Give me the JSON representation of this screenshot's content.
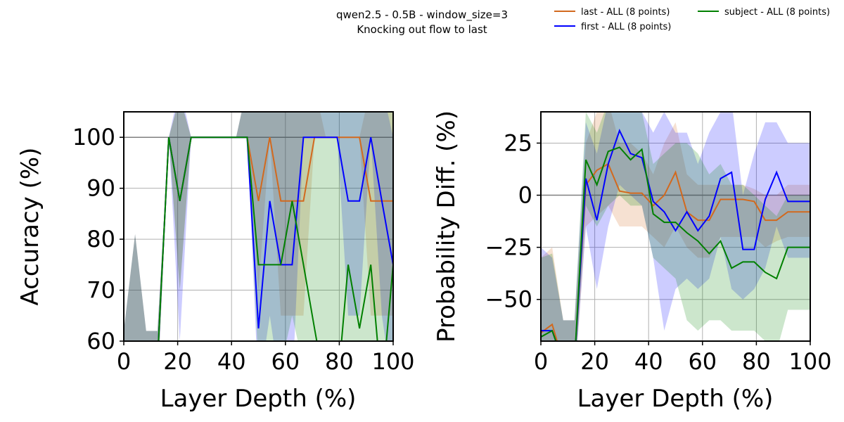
{
  "figure": {
    "title_line1": "qwen2.5 - 0.5B - window_size=3",
    "title_line2": "Knocking out flow to last"
  },
  "legend": [
    {
      "label": "last - ALL (8 points)",
      "color": "#d2691e"
    },
    {
      "label": "first - ALL (8 points)",
      "color": "#0000ff"
    },
    {
      "label": "subject - ALL (8 points)",
      "color": "#008000"
    }
  ],
  "chart_data": [
    {
      "type": "line",
      "xlabel": "Layer Depth (%)",
      "ylabel": "Accuracy (%)",
      "xlim": [
        0,
        100
      ],
      "ylim": [
        60,
        105
      ],
      "xticks": [
        0,
        20,
        40,
        60,
        80,
        100
      ],
      "yticks": [
        60,
        70,
        80,
        90,
        100
      ],
      "grid": true,
      "reference_line": 100,
      "x": [
        0,
        4.2,
        8.3,
        12.5,
        16.7,
        20.8,
        25,
        29.2,
        33.3,
        37.5,
        41.7,
        45.8,
        50,
        54.2,
        58.3,
        62.5,
        66.7,
        70.8,
        75,
        79.2,
        83.3,
        87.5,
        91.7,
        95.8,
        100
      ],
      "series": [
        {
          "name": "last - ALL (8 points)",
          "color": "#d2691e",
          "values": [
            56,
            56,
            56,
            56,
            100,
            87.5,
            100,
            100,
            100,
            100,
            100,
            100,
            87.5,
            100,
            87.5,
            87.5,
            87.5,
            100,
            100,
            100,
            100,
            100,
            87.5,
            87.5,
            87.5
          ],
          "lower": [
            50,
            50,
            50,
            50,
            100,
            70,
            100,
            100,
            100,
            100,
            100,
            100,
            70,
            100,
            65,
            65,
            65,
            100,
            100,
            100,
            100,
            100,
            65,
            65,
            65
          ],
          "upper": [
            62,
            81,
            62,
            62,
            100,
            108,
            100,
            100,
            100,
            100,
            100,
            110,
            108,
            110,
            110,
            110,
            110,
            110,
            100,
            100,
            100,
            100,
            110,
            110,
            110
          ]
        },
        {
          "name": "first - ALL (8 points)",
          "color": "#0000ff",
          "values": [
            56,
            56,
            56,
            56,
            100,
            87.5,
            100,
            100,
            100,
            100,
            100,
            100,
            62.5,
            87.5,
            75,
            75,
            100,
            100,
            100,
            100,
            87.5,
            87.5,
            100,
            87.5,
            75
          ],
          "lower": [
            50,
            50,
            50,
            50,
            100,
            60,
            100,
            100,
            100,
            100,
            100,
            100,
            50,
            65,
            50,
            50,
            100,
            100,
            100,
            100,
            65,
            65,
            100,
            65,
            50
          ],
          "upper": [
            62,
            81,
            62,
            62,
            100,
            110,
            100,
            100,
            100,
            100,
            100,
            110,
            108,
            110,
            110,
            110,
            110,
            110,
            110,
            110,
            110,
            110,
            110,
            110,
            100
          ]
        },
        {
          "name": "subject - ALL (8 points)",
          "color": "#008000",
          "values": [
            56,
            56,
            56,
            56,
            100,
            87.5,
            100,
            100,
            100,
            100,
            100,
            100,
            75,
            75,
            75,
            87.5,
            75,
            62.5,
            50,
            50,
            75,
            62.5,
            75,
            50,
            75
          ],
          "lower": [
            50,
            50,
            50,
            50,
            100,
            70,
            100,
            100,
            100,
            100,
            100,
            100,
            55,
            55,
            55,
            65,
            55,
            40,
            40,
            40,
            55,
            40,
            55,
            40,
            55
          ],
          "upper": [
            62,
            81,
            62,
            62,
            100,
            108,
            100,
            100,
            100,
            100,
            100,
            110,
            110,
            110,
            110,
            110,
            110,
            110,
            110,
            110,
            110,
            110,
            110,
            110,
            110
          ]
        }
      ]
    },
    {
      "type": "line",
      "xlabel": "Layer Depth (%)",
      "ylabel": "Probability Diff. (%)",
      "xlim": [
        0,
        100
      ],
      "ylim": [
        -70,
        40
      ],
      "xticks": [
        0,
        20,
        40,
        60,
        80,
        100
      ],
      "yticks": [
        -50,
        -25,
        0,
        25
      ],
      "ytick_labels": [
        "−50",
        "−25",
        "0",
        "25"
      ],
      "grid": true,
      "reference_line": 0,
      "x": [
        0,
        4.2,
        8.3,
        12.5,
        16.7,
        20.8,
        25,
        29.2,
        33.3,
        37.5,
        41.7,
        45.8,
        50,
        54.2,
        58.3,
        62.5,
        66.7,
        70.8,
        75,
        79.2,
        83.3,
        87.5,
        91.7,
        95.8,
        100
      ],
      "series": [
        {
          "name": "last - ALL (8 points)",
          "color": "#d2691e",
          "values": [
            -66,
            -62,
            -80,
            -80,
            5,
            12,
            15,
            2,
            1,
            1,
            -5,
            0,
            11,
            -8,
            -12,
            -12,
            -2,
            -2,
            -2,
            -3,
            -12,
            -12,
            -8,
            -8,
            -8
          ],
          "lower": [
            -75,
            -78,
            -90,
            -90,
            -15,
            -10,
            -5,
            -15,
            -15,
            -15,
            -20,
            -25,
            -15,
            -25,
            -30,
            -30,
            -20,
            -20,
            -20,
            -20,
            -25,
            -22,
            -20,
            -20,
            -20
          ],
          "upper": [
            -30,
            -25,
            -60,
            -60,
            25,
            40,
            45,
            25,
            25,
            20,
            10,
            25,
            35,
            10,
            5,
            5,
            5,
            5,
            5,
            3,
            0,
            0,
            5,
            5,
            5
          ]
        },
        {
          "name": "first - ALL (8 points)",
          "color": "#0000ff",
          "values": [
            -65,
            -65,
            -80,
            -80,
            8,
            -12,
            15,
            31,
            20,
            18,
            -3,
            -8,
            -17,
            -8,
            -17,
            -10,
            8,
            11,
            -26,
            -26,
            -2,
            11,
            -3,
            -3,
            -3
          ],
          "lower": [
            -75,
            -78,
            -90,
            -90,
            -15,
            -45,
            -15,
            5,
            0,
            -5,
            -30,
            -65,
            -45,
            -40,
            -45,
            -40,
            -20,
            -45,
            -50,
            -45,
            -35,
            -15,
            -30,
            -30,
            -30
          ],
          "upper": [
            -25,
            -30,
            -60,
            -60,
            35,
            20,
            45,
            50,
            45,
            40,
            30,
            40,
            30,
            30,
            15,
            30,
            40,
            45,
            0,
            20,
            35,
            35,
            25,
            25,
            25
          ]
        },
        {
          "name": "subject - ALL (8 points)",
          "color": "#008000",
          "values": [
            -68,
            -65,
            -80,
            -80,
            17,
            5,
            21,
            23,
            17,
            22,
            -9,
            -13,
            -13,
            -18,
            -22,
            -28,
            -22,
            -35,
            -32,
            -32,
            -37,
            -40,
            -25,
            -25,
            -25
          ],
          "lower": [
            -75,
            -78,
            -90,
            -90,
            -5,
            -15,
            -5,
            0,
            -5,
            -5,
            -30,
            -35,
            -40,
            -60,
            -65,
            -60,
            -60,
            -65,
            -65,
            -65,
            -70,
            -75,
            -55,
            -55,
            -55
          ],
          "upper": [
            -30,
            -28,
            -60,
            -60,
            40,
            30,
            45,
            45,
            40,
            40,
            15,
            20,
            25,
            25,
            20,
            10,
            15,
            5,
            5,
            0,
            -5,
            -10,
            0,
            0,
            0
          ]
        }
      ]
    }
  ]
}
